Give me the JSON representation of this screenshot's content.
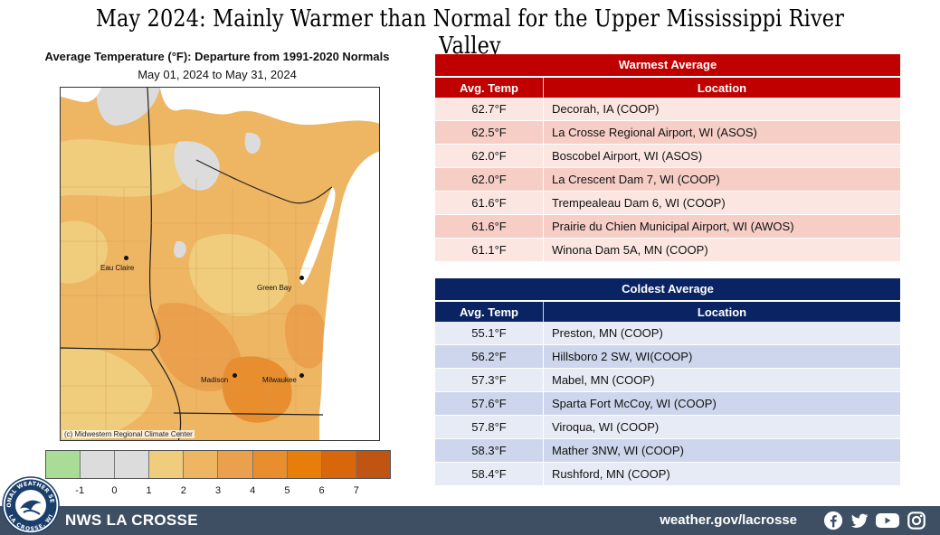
{
  "title": "May 2024:  Mainly Warmer than Normal for the Upper Mississippi River Valley",
  "map": {
    "title": "Average Temperature (°F): Departure from 1991-2020 Normals",
    "subtitle": "May 01, 2024 to May 31, 2024",
    "credit": "(c) Midwestern Regional Climate Center",
    "cities": [
      {
        "name": "Eau Claire"
      },
      {
        "name": "Green Bay"
      },
      {
        "name": "Madison"
      },
      {
        "name": "Milwaukee"
      }
    ]
  },
  "legend": {
    "ticks": [
      "-1",
      "0",
      "1",
      "2",
      "3",
      "4",
      "5",
      "6",
      "7"
    ],
    "colors": [
      "#a9dd97",
      "#dcdcdc",
      "#dcdcdc",
      "#f0cd7c",
      "#eeb563",
      "#eba04e",
      "#e88e2f",
      "#e77d0a",
      "#d8660a",
      "#c05412"
    ]
  },
  "warmest": {
    "header": "Warmest  Average",
    "col_temp": "Avg. Temp",
    "col_location": "Location",
    "rows": [
      {
        "temp": "62.7°F",
        "location": "Decorah, IA (COOP)"
      },
      {
        "temp": "62.5°F",
        "location": "La Crosse Regional Airport, WI (ASOS)"
      },
      {
        "temp": "62.0°F",
        "location": "Boscobel Airport, WI (ASOS)"
      },
      {
        "temp": "62.0°F",
        "location": "La Crescent Dam 7, WI (COOP)"
      },
      {
        "temp": "61.6°F",
        "location": "Trempealeau Dam 6, WI (COOP)"
      },
      {
        "temp": "61.6°F",
        "location": "Prairie du Chien Municipal Airport, WI (AWOS)"
      },
      {
        "temp": "61.1°F",
        "location": "Winona Dam 5A, MN (COOP)"
      }
    ]
  },
  "coldest": {
    "header": "Coldest Average",
    "col_temp": "Avg. Temp",
    "col_location": "Location",
    "rows": [
      {
        "temp": "55.1°F",
        "location": "Preston, MN (COOP)"
      },
      {
        "temp": "56.2°F",
        "location": "Hillsboro 2 SW, WI(COOP)"
      },
      {
        "temp": "57.3°F",
        "location": "Mabel, MN (COOP)"
      },
      {
        "temp": "57.6°F",
        "location": "Sparta Fort McCoy, WI (COOP)"
      },
      {
        "temp": "57.8°F",
        "location": "Viroqua, WI (COOP)"
      },
      {
        "temp": "58.3°F",
        "location": "Mather 3NW, WI (COOP)"
      },
      {
        "temp": "58.4°F",
        "location": "Rushford, MN (COOP)"
      }
    ]
  },
  "footer": {
    "name": "NWS LA CROSSE",
    "url": "weather.gov/lacrosse",
    "logo_text_top": "NATIONAL WEATHER SERVICE",
    "logo_text_bottom": "LA CROSSE, WI",
    "social_icons": [
      "facebook-icon",
      "twitter-icon",
      "youtube-icon",
      "instagram-icon"
    ]
  }
}
